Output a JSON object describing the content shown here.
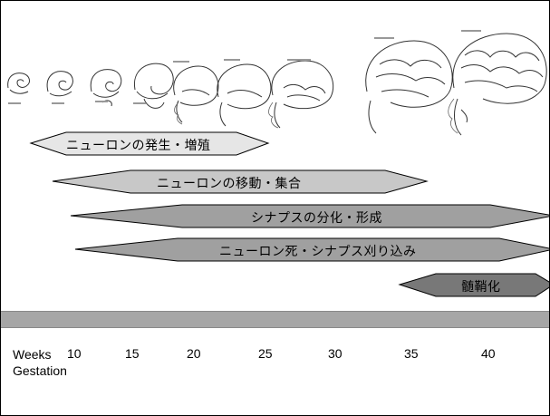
{
  "phases": [
    {
      "id": "proliferation",
      "label": "ニューロンの発生・増殖"
    },
    {
      "id": "migration",
      "label": "ニューロンの移動・集合"
    },
    {
      "id": "differentiation",
      "label": "シナプスの分化・形成"
    },
    {
      "id": "pruning",
      "label": "ニューロン死・シナプス刈り込み"
    },
    {
      "id": "myelination",
      "label": "髄鞘化"
    }
  ],
  "axis": {
    "title_line1": "Weeks",
    "title_line2": "Gestation",
    "ticks": [
      "10",
      "15",
      "20",
      "25",
      "30",
      "35",
      "40"
    ]
  },
  "colors": {
    "proliferation_fill": "#e6e6e6",
    "migration_fill": "#c8c8c8",
    "differentiation_fill": "#a0a0a0",
    "pruning_fill": "#a0a0a0",
    "myelination_fill": "#787878",
    "timebar": "#a6a6a6"
  },
  "illustration": {
    "subject": "fetal-brain-development-sequence",
    "stages": 11
  }
}
